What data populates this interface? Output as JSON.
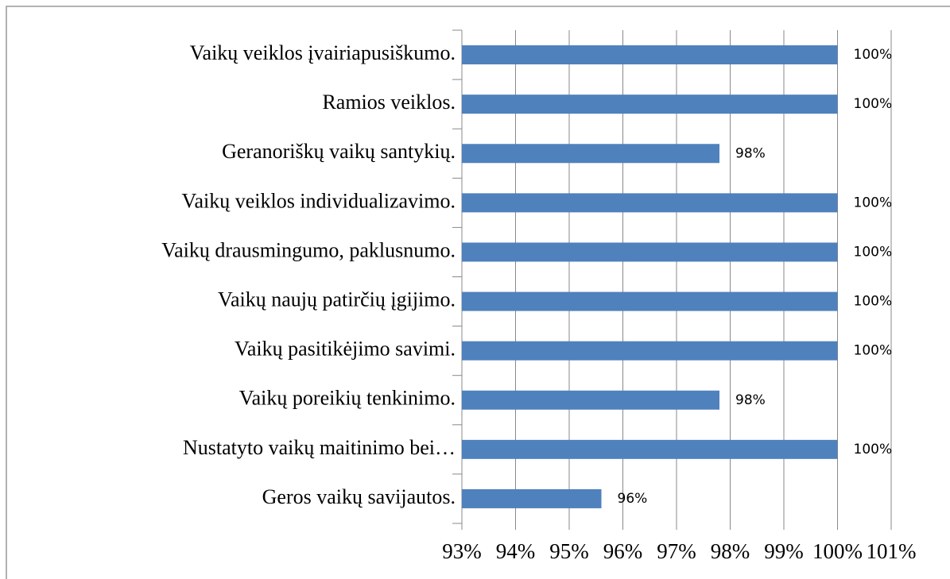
{
  "chart_data": {
    "type": "barh",
    "categories": [
      "Vaikų veiklos įvairiapusiškumo.",
      "Ramios veiklos.",
      "Geranoriškų vaikų santykių.",
      "Vaikų veiklos individualizavimo.",
      "Vaikų drausmingumo, paklusnumo.",
      "Vaikų naujų patirčių įgijimo.",
      "Vaikų pasitikėjimo savimi.",
      "Vaikų poreikių tenkinimo.",
      "Nustatyto vaikų maitinimo bei…",
      "Geros vaikų savijautos."
    ],
    "values": [
      100,
      100,
      97.8,
      100,
      100,
      100,
      100,
      97.8,
      100,
      95.6
    ],
    "value_labels": [
      "100%",
      "100%",
      "98%",
      "100%",
      "100%",
      "100%",
      "100%",
      "98%",
      "100%",
      "96%"
    ],
    "color": "#4f81bd",
    "xlim": [
      93,
      101
    ],
    "xticks": [
      {
        "value": 93,
        "label": "93%"
      },
      {
        "value": 94,
        "label": "94%"
      },
      {
        "value": 95,
        "label": "95%"
      },
      {
        "value": 96,
        "label": "96%"
      },
      {
        "value": 97,
        "label": "97%"
      },
      {
        "value": 98,
        "label": "98%"
      },
      {
        "value": 99,
        "label": "99%"
      },
      {
        "value": 100,
        "label": "100%"
      },
      {
        "value": 101,
        "label": "101%"
      }
    ],
    "grid": true
  }
}
